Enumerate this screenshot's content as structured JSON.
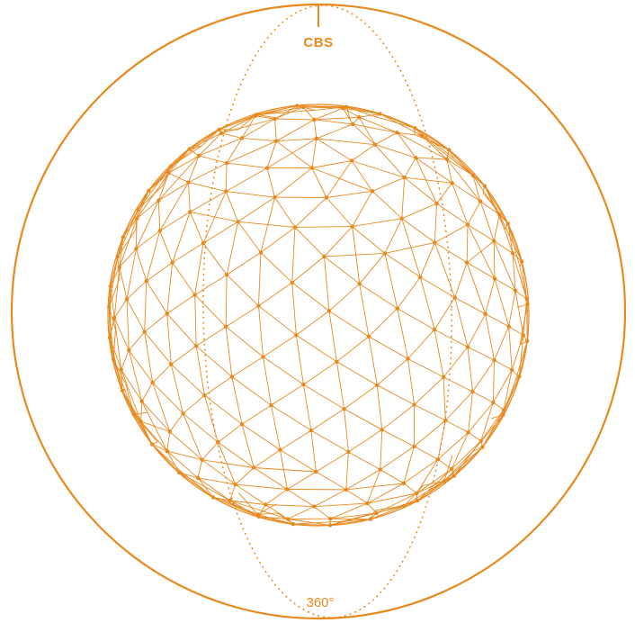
{
  "labels": {
    "top": "CBS",
    "bottom": "360°"
  },
  "colors": {
    "accent": "#E8891E",
    "background": "#FFFFFF"
  }
}
